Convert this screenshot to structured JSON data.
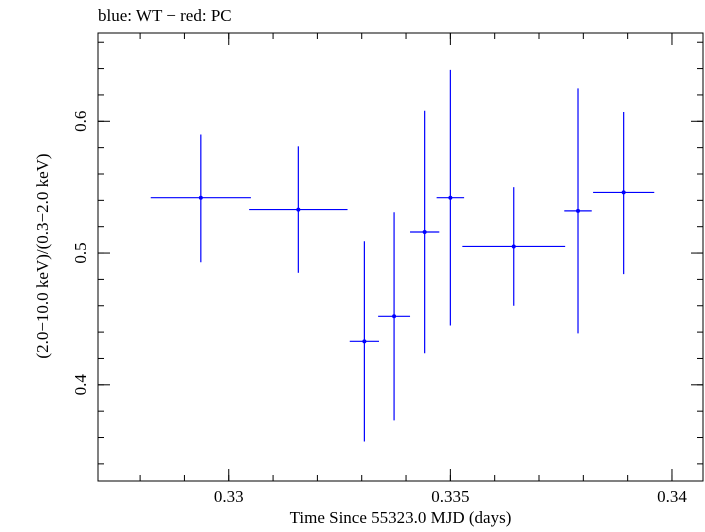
{
  "chart_data": {
    "type": "scatter",
    "title": "blue: WT − red: PC",
    "xlabel": "Time Since 55323.0 MJD (days)",
    "ylabel": "(2.0−10.0 keV)/(0.3−2.0 keV)",
    "xlim": [
      0.32705,
      0.3407
    ],
    "ylim": [
      0.327,
      0.667
    ],
    "xticks": [
      0.33,
      0.335,
      0.34
    ],
    "xtick_labels": [
      "0.33",
      "0.335",
      "0.34"
    ],
    "yticks": [
      0.4,
      0.5,
      0.6
    ],
    "ytick_labels": [
      "0.4",
      "0.5",
      "0.6"
    ],
    "grid": false,
    "series": [
      {
        "color": "#0000ff",
        "points": [
          {
            "x": 0.32937,
            "xerr": 0.00113,
            "y": 0.542,
            "yerr_low": 0.049,
            "yerr_high": 0.048
          },
          {
            "x": 0.33157,
            "xerr": 0.00111,
            "y": 0.533,
            "yerr_low": 0.048,
            "yerr_high": 0.048
          },
          {
            "x": 0.33306,
            "xerr": 0.00033,
            "y": 0.433,
            "yerr_low": 0.076,
            "yerr_high": 0.076
          },
          {
            "x": 0.33373,
            "xerr": 0.00036,
            "y": 0.452,
            "yerr_low": 0.079,
            "yerr_high": 0.079
          },
          {
            "x": 0.33442,
            "xerr": 0.00033,
            "y": 0.516,
            "yerr_low": 0.092,
            "yerr_high": 0.092
          },
          {
            "x": 0.335,
            "xerr": 0.00031,
            "y": 0.542,
            "yerr_low": 0.097,
            "yerr_high": 0.097
          },
          {
            "x": 0.33643,
            "xerr": 0.00116,
            "y": 0.505,
            "yerr_low": 0.045,
            "yerr_high": 0.045
          },
          {
            "x": 0.33788,
            "xerr": 0.00031,
            "y": 0.532,
            "yerr_low": 0.093,
            "yerr_high": 0.093
          },
          {
            "x": 0.33891,
            "xerr": 0.00069,
            "y": 0.546,
            "yerr_low": 0.062,
            "yerr_high": 0.061
          }
        ]
      }
    ]
  }
}
